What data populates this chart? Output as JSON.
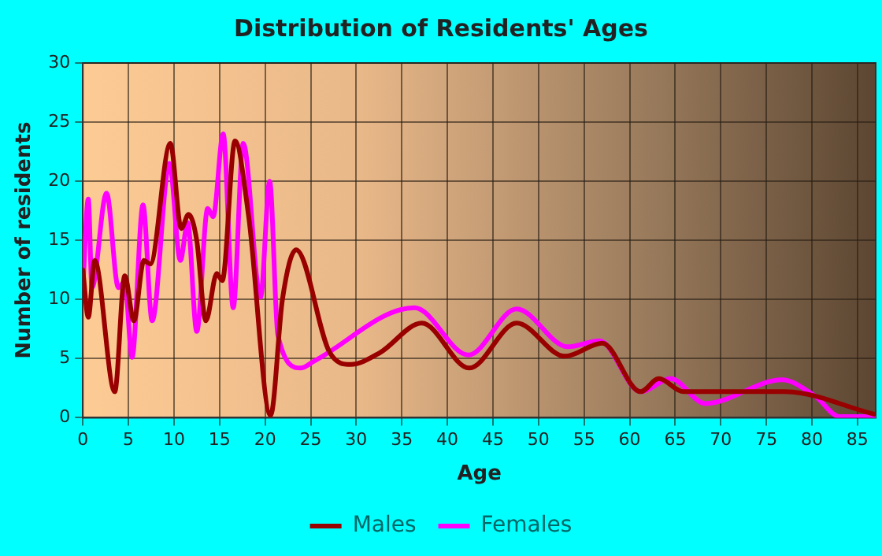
{
  "chart_data": {
    "type": "line",
    "title": "Distribution of Residents' Ages",
    "xlabel": "Age",
    "ylabel": "Number of residents",
    "xlim": [
      0,
      87
    ],
    "xticks": [
      0,
      5,
      10,
      15,
      20,
      25,
      30,
      35,
      40,
      45,
      50,
      55,
      60,
      65,
      70,
      75,
      80,
      85
    ],
    "ylim": [
      0,
      30
    ],
    "yticks": [
      0,
      5,
      10,
      15,
      20,
      25,
      30
    ],
    "grid": true,
    "legend": "bottom",
    "marker": "none",
    "line_style": "solid",
    "series": [
      {
        "name": "Males",
        "color": "#990000",
        "x": [
          0,
          0.6,
          1.3,
          3.5,
          4.6,
          5.6,
          6.7,
          7.4,
          9.6,
          10.8,
          11.6,
          12.5,
          13.5,
          14.7,
          15.3,
          16.7,
          18.2,
          20.6,
          21.9,
          23.4,
          27.1,
          29.4,
          32.6,
          37.2,
          42.4,
          47.6,
          52.9,
          57,
          61.2,
          63.2,
          65.9,
          77,
          86.8
        ],
        "values": [
          12.5,
          8.5,
          13.3,
          2.2,
          12,
          8.2,
          13.3,
          13,
          23.2,
          16,
          17.2,
          15,
          8.2,
          12.2,
          11.6,
          23.4,
          17,
          0.2,
          10,
          14.2,
          5.5,
          4.5,
          5.5,
          8,
          4.2,
          8,
          5.2,
          6.3,
          2.2,
          3.3,
          2.2,
          2.2,
          0.3
        ]
      },
      {
        "name": "Females",
        "color": "#ff00ff",
        "x": [
          0,
          0.6,
          1,
          2.6,
          3.9,
          4.6,
          5.4,
          6.6,
          7.6,
          9.5,
          10.7,
          11.5,
          12.5,
          13.7,
          14.3,
          15.4,
          16.5,
          17.6,
          19.5,
          20.5,
          21.4,
          23.9,
          25.4,
          36.4,
          42.3,
          47.6,
          53.2,
          56.7,
          61.2,
          64.5,
          68.3,
          76.7,
          80.4,
          83,
          86.8
        ],
        "values": [
          11,
          18.5,
          11,
          19,
          11,
          11.5,
          5.1,
          18,
          8.2,
          21.5,
          13.3,
          16.5,
          7.3,
          17.7,
          17,
          24,
          9.3,
          23.2,
          10.2,
          20,
          7,
          4.2,
          4.8,
          9.3,
          5.3,
          9.2,
          6,
          6.5,
          2.2,
          3.3,
          1.2,
          3.2,
          1.8,
          0.1,
          0.1
        ]
      }
    ]
  }
}
